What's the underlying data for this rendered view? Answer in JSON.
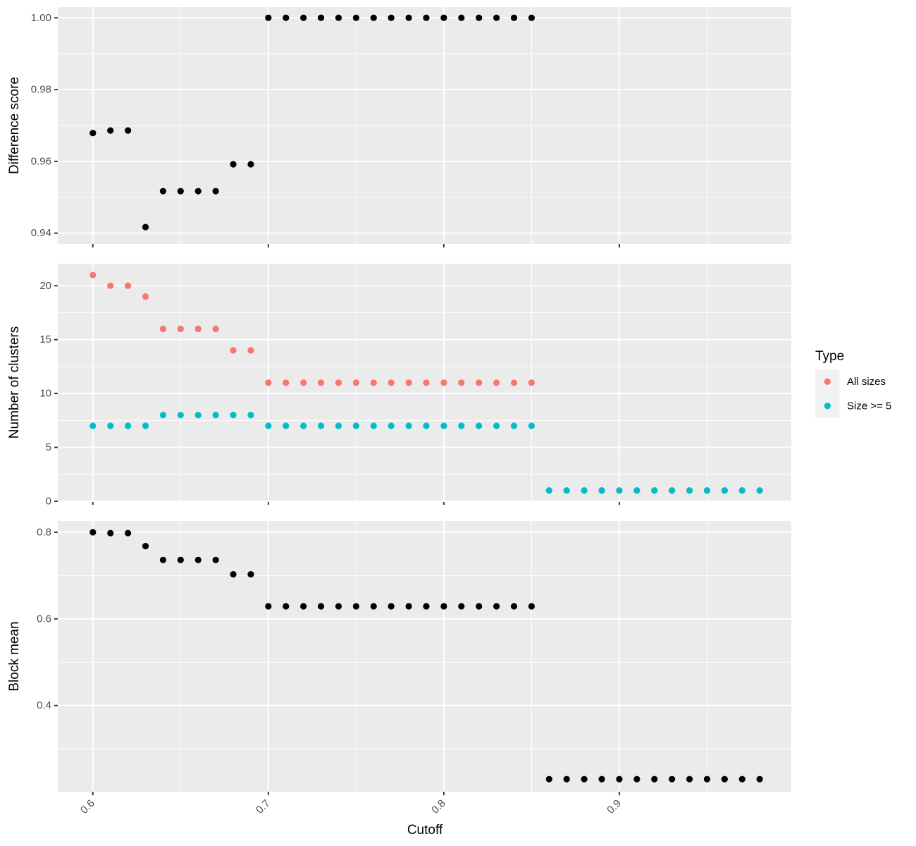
{
  "chart_data": {
    "type": "scatter",
    "xlabel": "Cutoff",
    "xlim": [
      0.58,
      0.998
    ],
    "x_ticks": [
      "0.6",
      "0.7",
      "0.8",
      "0.9"
    ],
    "x_tick_values": [
      0.6,
      0.7,
      0.8,
      0.9
    ],
    "x_minor_grid": [
      0.65,
      0.75,
      0.85,
      0.95
    ],
    "grid": true,
    "legend": {
      "title": "Type",
      "position": "right",
      "entries": [
        {
          "label": "All sizes",
          "color": "#F8766D"
        },
        {
          "label": "Size >= 5",
          "color": "#00BFC4"
        }
      ]
    },
    "panels": [
      {
        "ylabel": "Difference score",
        "ylim": [
          0.937,
          1.003
        ],
        "y_ticks": [
          "0.94",
          "0.96",
          "0.98",
          "1.00"
        ],
        "y_tick_values": [
          0.94,
          0.96,
          0.98,
          1.0
        ],
        "y_minor_grid": [
          0.95,
          0.97,
          0.99
        ],
        "show_x_tick_labels": false,
        "series": [
          {
            "color": "#000000",
            "x": [
              0.6,
              0.61,
              0.62,
              0.63,
              0.64,
              0.65,
              0.66,
              0.67,
              0.68,
              0.69,
              0.7,
              0.71,
              0.72,
              0.73,
              0.74,
              0.75,
              0.76,
              0.77,
              0.78,
              0.79,
              0.8,
              0.81,
              0.82,
              0.83,
              0.84,
              0.85
            ],
            "y": [
              0.9679,
              0.9686,
              0.9686,
              0.9417,
              0.9517,
              0.9517,
              0.9517,
              0.9517,
              0.9592,
              0.9592,
              1.0,
              1.0,
              1.0,
              1.0,
              1.0,
              1.0,
              1.0,
              1.0,
              1.0,
              1.0,
              1.0,
              1.0,
              1.0,
              1.0,
              1.0,
              1.0
            ]
          }
        ]
      },
      {
        "ylabel": "Number of clusters",
        "ylim": [
          0,
          22.05
        ],
        "y_ticks": [
          "0",
          "5",
          "10",
          "15",
          "20"
        ],
        "y_tick_values": [
          0,
          5,
          10,
          15,
          20
        ],
        "y_minor_grid": [
          2.5,
          7.5,
          12.5,
          17.5
        ],
        "show_x_tick_labels": false,
        "series": [
          {
            "name": "All sizes",
            "color": "#F8766D",
            "x": [
              0.6,
              0.61,
              0.62,
              0.63,
              0.64,
              0.65,
              0.66,
              0.67,
              0.68,
              0.69,
              0.7,
              0.71,
              0.72,
              0.73,
              0.74,
              0.75,
              0.76,
              0.77,
              0.78,
              0.79,
              0.8,
              0.81,
              0.82,
              0.83,
              0.84,
              0.85,
              0.86,
              0.87,
              0.88,
              0.89,
              0.9,
              0.91,
              0.92,
              0.93,
              0.94,
              0.95,
              0.96,
              0.97,
              0.98
            ],
            "y": [
              21,
              20,
              20,
              19,
              16,
              16,
              16,
              16,
              14,
              14,
              11,
              11,
              11,
              11,
              11,
              11,
              11,
              11,
              11,
              11,
              11,
              11,
              11,
              11,
              11,
              11,
              1,
              1,
              1,
              1,
              1,
              1,
              1,
              1,
              1,
              1,
              1,
              1,
              1
            ]
          },
          {
            "name": "Size >= 5",
            "color": "#00BFC4",
            "x": [
              0.6,
              0.61,
              0.62,
              0.63,
              0.64,
              0.65,
              0.66,
              0.67,
              0.68,
              0.69,
              0.7,
              0.71,
              0.72,
              0.73,
              0.74,
              0.75,
              0.76,
              0.77,
              0.78,
              0.79,
              0.8,
              0.81,
              0.82,
              0.83,
              0.84,
              0.85,
              0.86,
              0.87,
              0.88,
              0.89,
              0.9,
              0.91,
              0.92,
              0.93,
              0.94,
              0.95,
              0.96,
              0.97,
              0.98
            ],
            "y": [
              7,
              7,
              7,
              7,
              8,
              8,
              8,
              8,
              8,
              8,
              7,
              7,
              7,
              7,
              7,
              7,
              7,
              7,
              7,
              7,
              7,
              7,
              7,
              7,
              7,
              7,
              1,
              1,
              1,
              1,
              1,
              1,
              1,
              1,
              1,
              1,
              1,
              1,
              1
            ]
          }
        ]
      },
      {
        "ylabel": "Block mean",
        "ylim": [
          0.201,
          0.826
        ],
        "y_ticks": [
          "0.4",
          "0.6",
          "0.8"
        ],
        "y_tick_values": [
          0.4,
          0.6,
          0.8
        ],
        "y_minor_grid": [
          0.3,
          0.5,
          0.7
        ],
        "show_x_tick_labels": true,
        "series": [
          {
            "color": "#000000",
            "x": [
              0.6,
              0.61,
              0.62,
              0.63,
              0.64,
              0.65,
              0.66,
              0.67,
              0.68,
              0.69,
              0.7,
              0.71,
              0.72,
              0.73,
              0.74,
              0.75,
              0.76,
              0.77,
              0.78,
              0.79,
              0.8,
              0.81,
              0.82,
              0.83,
              0.84,
              0.85,
              0.86,
              0.87,
              0.88,
              0.89,
              0.9,
              0.91,
              0.92,
              0.93,
              0.94,
              0.95,
              0.96,
              0.97,
              0.98
            ],
            "y": [
              0.8,
              0.798,
              0.798,
              0.768,
              0.736,
              0.736,
              0.736,
              0.736,
              0.703,
              0.703,
              0.629,
              0.629,
              0.629,
              0.629,
              0.629,
              0.629,
              0.629,
              0.629,
              0.629,
              0.629,
              0.629,
              0.629,
              0.629,
              0.629,
              0.629,
              0.629,
              0.23,
              0.23,
              0.23,
              0.23,
              0.23,
              0.23,
              0.23,
              0.23,
              0.23,
              0.23,
              0.23,
              0.23,
              0.23
            ]
          }
        ]
      }
    ]
  }
}
